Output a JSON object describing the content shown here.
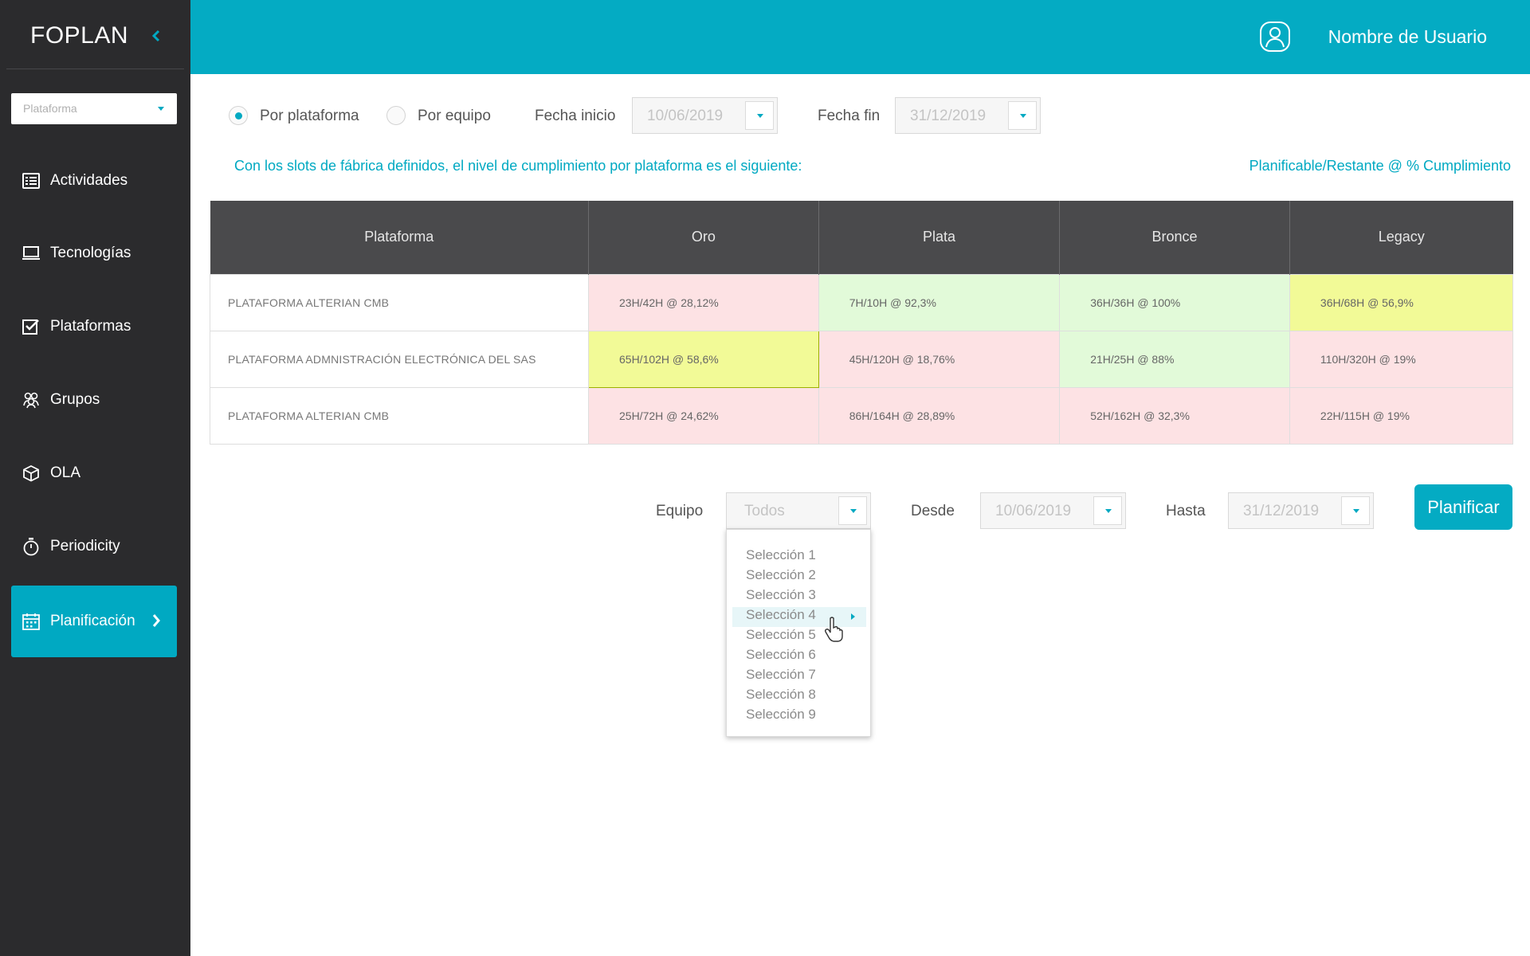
{
  "app": {
    "title": "FOPLAN"
  },
  "sidebar": {
    "select_placeholder": "Plataforma",
    "items": [
      {
        "label": "Actividades",
        "icon": "list-icon"
      },
      {
        "label": "Tecnologías",
        "icon": "laptop-icon"
      },
      {
        "label": "Plataformas",
        "icon": "checkbox-icon"
      },
      {
        "label": "Grupos",
        "icon": "group-icon"
      },
      {
        "label": "OLA",
        "icon": "cube-icon"
      },
      {
        "label": "Periodicity",
        "icon": "stopwatch-icon"
      },
      {
        "label": "Planificación",
        "icon": "calendar-icon",
        "active": true
      }
    ]
  },
  "header": {
    "user_name": "Nombre de Usuario"
  },
  "filters": {
    "radio_platform": "Por plataforma",
    "radio_team": "Por equipo",
    "start_label": "Fecha inicio",
    "start_value": "10/06/2019",
    "end_label": "Fecha fin",
    "end_value": "31/12/2019"
  },
  "info": {
    "message": "Con los slots de fábrica definidos, el nivel de cumplimiento por plataforma es el siguiente:",
    "legend": "Planificable/Restante @ % Cumplimiento"
  },
  "table": {
    "headers": [
      "Plataforma",
      "Oro",
      "Plata",
      "Bronce",
      "Legacy"
    ],
    "rows": [
      {
        "name": "PLATAFORMA ALTERIAN CMB",
        "cells": [
          "23H/42H @ 28,12%",
          "7H/10H @ 92,3%",
          "36H/36H @ 100%",
          "36H/68H @ 56,9%"
        ]
      },
      {
        "name": "PLATAFORMA ADMNISTRACIÓN ELECTRÓNICA DEL SAS",
        "cells": [
          "65H/102H @ 58,6%",
          "45H/120H @ 18,76%",
          "21H/25H @ 88%",
          "110H/320H @ 19%"
        ]
      },
      {
        "name": "PLATAFORMA ALTERIAN CMB",
        "cells": [
          "25H/72H @ 24,62%",
          "86H/164H @ 28,89%",
          "52H/162H @ 32,3%",
          "22H/115H @ 19%"
        ]
      }
    ]
  },
  "planner": {
    "team_label": "Equipo",
    "team_value": "Todos",
    "from_label": "Desde",
    "from_value": "10/06/2019",
    "to_label": "Hasta",
    "to_value": "31/12/2019",
    "button": "Planificar",
    "options": [
      "Selección 1",
      "Selección 2",
      "Selección 3",
      "Selección 4",
      "Selección 5",
      "Selección 6",
      "Selección 7",
      "Selección 8",
      "Selección 9"
    ]
  },
  "colors": {
    "accent": "#04abc3",
    "sidebar": "#2b2b2d",
    "header_row": "#4a4a4c",
    "red": "#fde2e4",
    "green": "#e2fad9",
    "yellow": "#f2fa97"
  }
}
